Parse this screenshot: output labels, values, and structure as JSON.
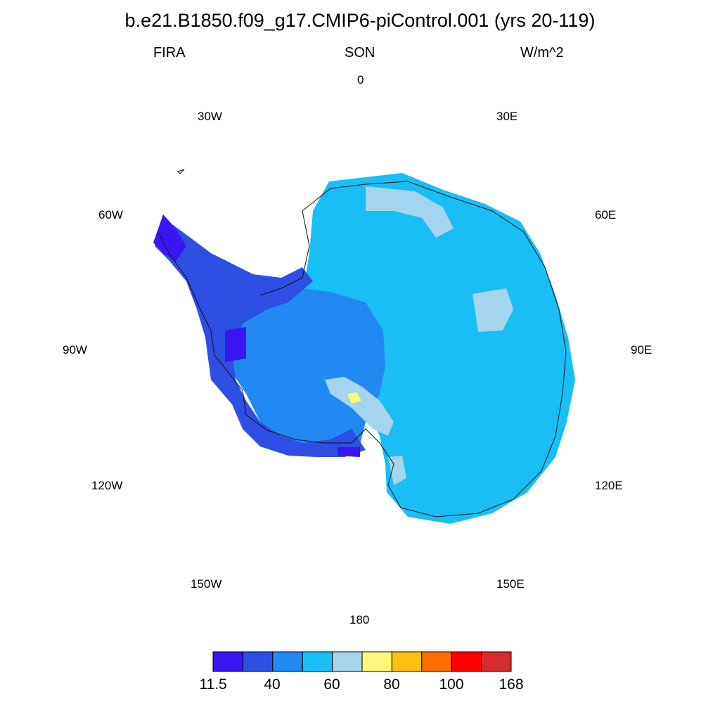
{
  "title": "b.e21.B1850.f09_g17.CMIP6-piControl.001 (yrs 20-119)",
  "subtitle": {
    "left": "FIRA",
    "center": "SON",
    "right": "W/m^2"
  },
  "longitude_labels": {
    "0": "0",
    "30E": "30E",
    "60E": "60E",
    "90E": "90E",
    "120E": "120E",
    "150E": "150E",
    "180": "180",
    "150W": "150W",
    "120W": "120W",
    "90W": "90W",
    "60W": "60W",
    "30W": "30W"
  },
  "colorbar": {
    "colors": [
      "#3b16f5",
      "#2e4fe3",
      "#2389f2",
      "#19bef5",
      "#a4d4ee",
      "#fff77a",
      "#fdbf12",
      "#fd6f00",
      "#fd0000",
      "#d62b2b"
    ],
    "tick_labels": [
      "11.5",
      "40",
      "60",
      "80",
      "100",
      "168"
    ]
  },
  "regions": {
    "east_antarctic_plateau": "#19bef5",
    "west_antarctica": "#2389f2",
    "peninsula_coast": "#2e4fe3",
    "peninsula_tip": "#3b16f5",
    "ice_shelves": "#a4d4ee",
    "warm_patch": "#fff77a"
  }
}
